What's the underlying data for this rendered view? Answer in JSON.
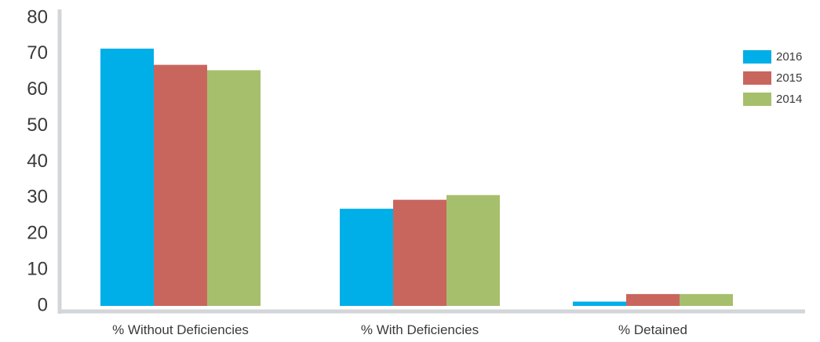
{
  "chart_data": {
    "type": "bar",
    "title": "",
    "xlabel": "",
    "ylabel": "",
    "categories": [
      "% Without Deficiencies",
      "% With Deficiencies",
      "% Detained"
    ],
    "series": [
      {
        "name": "2016",
        "color": "#00aee8",
        "values": [
          71.5,
          27,
          1.2
        ]
      },
      {
        "name": "2015",
        "color": "#c8665e",
        "values": [
          67,
          29.5,
          3.3
        ]
      },
      {
        "name": "2014",
        "color": "#a6bf6c",
        "values": [
          65.5,
          30.8,
          3.3
        ]
      }
    ],
    "ylim": [
      0,
      80
    ],
    "yticks": [
      0,
      10,
      20,
      30,
      40,
      50,
      60,
      70,
      80
    ],
    "grid": false,
    "legend": "top-right",
    "axis_color": "#d3d6d9"
  }
}
